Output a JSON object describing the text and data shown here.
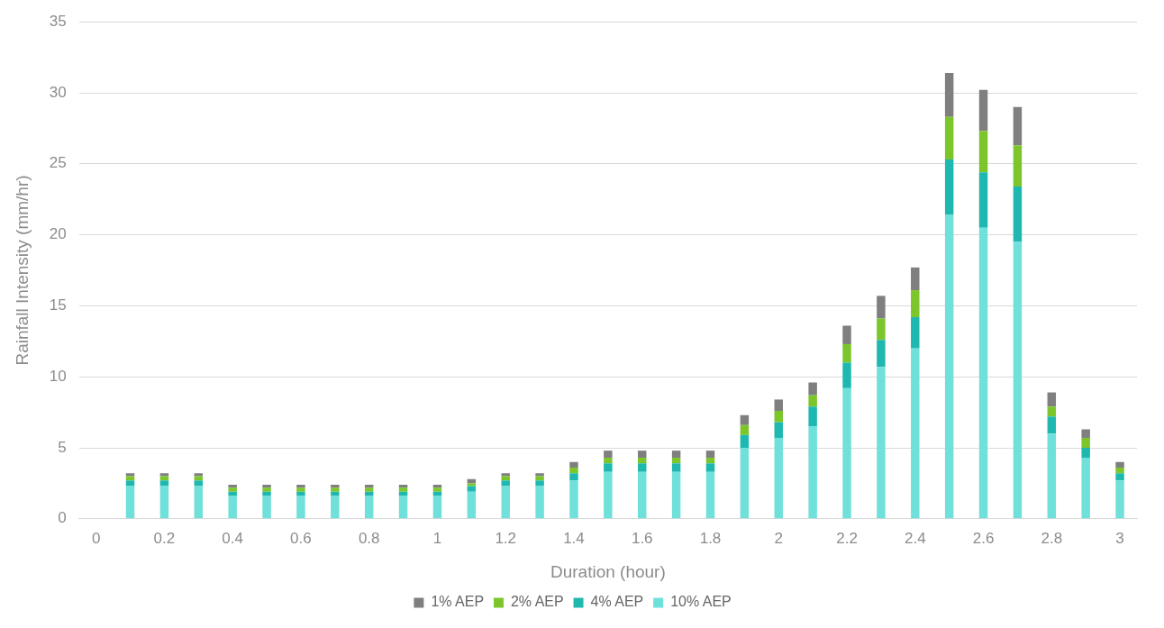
{
  "chart_data": {
    "type": "bar",
    "stacked": true,
    "xlabel": "Duration (hour)",
    "ylabel": "Rainfall Intensity (mm/hr)",
    "categories": [
      "0",
      null,
      "0.2",
      null,
      "0.4",
      null,
      "0.6",
      null,
      "0.8",
      null,
      "1",
      null,
      "1.2",
      null,
      "1.4",
      null,
      "1.6",
      null,
      "1.8",
      null,
      "2",
      null,
      "2.2",
      null,
      "2.4",
      null,
      "2.6",
      null,
      "2.8",
      null,
      "3"
    ],
    "series": [
      {
        "name": "10% AEP",
        "color": "#6fe0da",
        "values": [
          null,
          2.3,
          2.3,
          2.3,
          1.6,
          1.6,
          1.6,
          1.6,
          1.6,
          1.6,
          1.6,
          1.9,
          2.3,
          2.3,
          2.7,
          3.3,
          3.3,
          3.3,
          3.3,
          5.0,
          5.7,
          6.5,
          9.2,
          10.7,
          12.0,
          21.4,
          20.5,
          19.5,
          6.0,
          4.3,
          2.7
        ]
      },
      {
        "name": "4% AEP",
        "color": "#1fb8b0",
        "values": [
          null,
          0.4,
          0.4,
          0.4,
          0.3,
          0.3,
          0.3,
          0.3,
          0.3,
          0.3,
          0.3,
          0.4,
          0.4,
          0.4,
          0.5,
          0.6,
          0.6,
          0.6,
          0.6,
          0.9,
          1.1,
          1.4,
          1.8,
          1.9,
          2.2,
          3.9,
          3.9,
          3.9,
          1.2,
          0.7,
          0.5
        ]
      },
      {
        "name": "2% AEP",
        "color": "#7cc62c",
        "values": [
          null,
          0.3,
          0.3,
          0.3,
          0.3,
          0.3,
          0.3,
          0.3,
          0.3,
          0.3,
          0.3,
          0.2,
          0.3,
          0.3,
          0.4,
          0.4,
          0.4,
          0.4,
          0.4,
          0.7,
          0.8,
          0.8,
          1.3,
          1.5,
          1.9,
          3.0,
          2.9,
          2.9,
          0.7,
          0.7,
          0.4
        ]
      },
      {
        "name": "1% AEP",
        "color": "#7f7f7f",
        "values": [
          null,
          0.2,
          0.2,
          0.2,
          0.2,
          0.2,
          0.2,
          0.2,
          0.2,
          0.2,
          0.2,
          0.3,
          0.2,
          0.2,
          0.4,
          0.5,
          0.5,
          0.5,
          0.5,
          0.7,
          0.8,
          0.9,
          1.3,
          1.6,
          1.6,
          3.1,
          2.9,
          2.7,
          1.0,
          0.6,
          0.4
        ]
      }
    ],
    "ylim": [
      0,
      35
    ],
    "yticks": [
      0,
      5,
      10,
      15,
      20,
      25,
      30,
      35
    ],
    "grid": "y",
    "legend": "bottom"
  }
}
